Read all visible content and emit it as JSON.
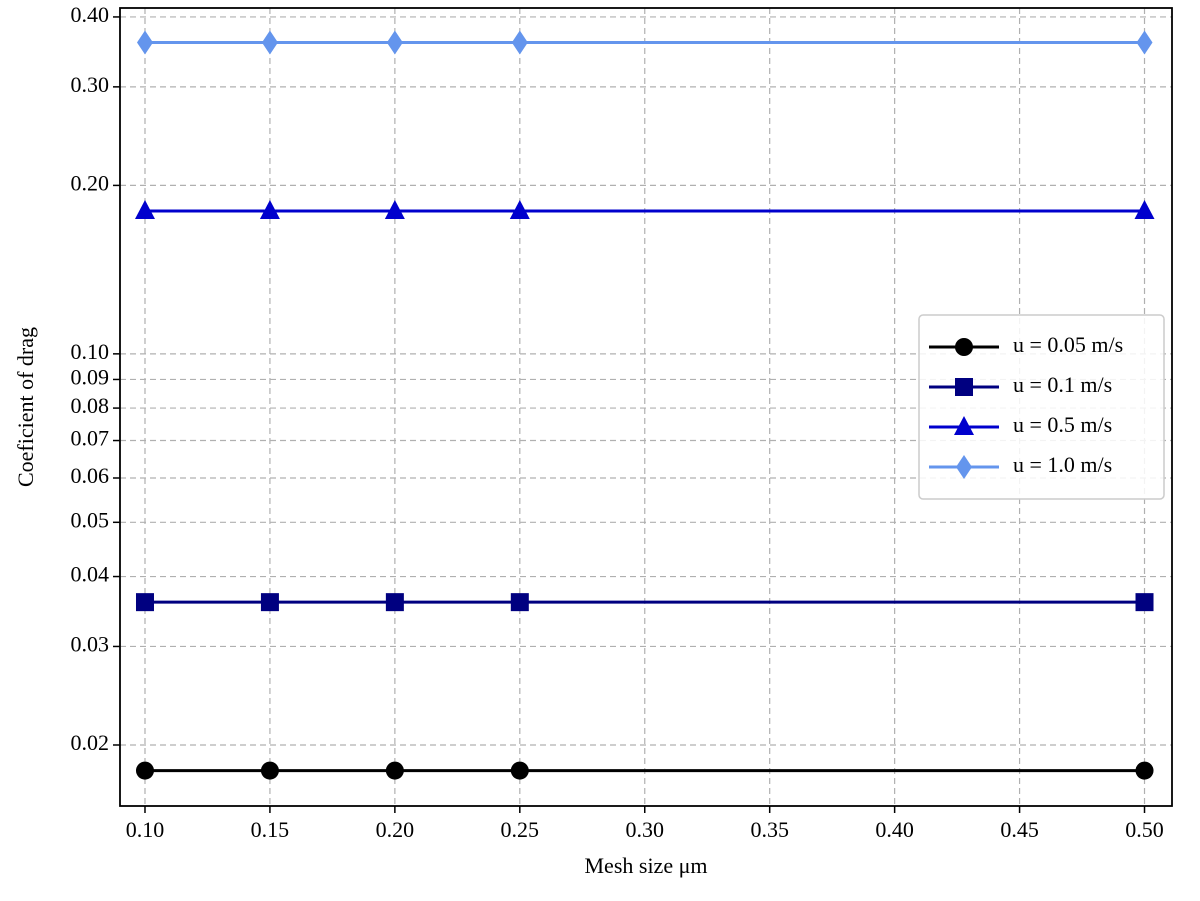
{
  "chart_data": {
    "type": "line",
    "x_label": "Mesh size μm",
    "y_label": "Coeficient of drag",
    "x": [
      0.1,
      0.15,
      0.2,
      0.25,
      0.5
    ],
    "series": [
      {
        "name": "u = 0.05 m/s",
        "color": "#000000",
        "marker": "circle",
        "values": [
          0.018,
          0.018,
          0.018,
          0.018,
          0.018
        ]
      },
      {
        "name": "u = 0.1 m/s",
        "color": "#000080",
        "marker": "square",
        "values": [
          0.036,
          0.036,
          0.036,
          0.036,
          0.036
        ]
      },
      {
        "name": "u = 0.5 m/s",
        "color": "#0000cd",
        "marker": "triangle",
        "values": [
          0.18,
          0.18,
          0.18,
          0.18,
          0.18
        ]
      },
      {
        "name": "u = 1.0 m/s",
        "color": "#6495ed",
        "marker": "diamond",
        "values": [
          0.36,
          0.36,
          0.36,
          0.36,
          0.36
        ]
      }
    ],
    "xlim": [
      0.09,
      0.511
    ],
    "xticks": [
      {
        "value": 0.1,
        "label": "0.10"
      },
      {
        "value": 0.15,
        "label": "0.15"
      },
      {
        "value": 0.2,
        "label": "0.20"
      },
      {
        "value": 0.25,
        "label": "0.25"
      },
      {
        "value": 0.3,
        "label": "0.30"
      },
      {
        "value": 0.35,
        "label": "0.35"
      },
      {
        "value": 0.4,
        "label": "0.40"
      },
      {
        "value": 0.45,
        "label": "0.45"
      },
      {
        "value": 0.5,
        "label": "0.50"
      }
    ],
    "ylim": [
      0.01556,
      0.415
    ],
    "yscale": "log",
    "yticks": [
      0.02,
      0.03,
      0.04,
      0.05,
      0.06,
      0.07,
      0.08,
      0.09,
      {
        "value": 0.1,
        "label": "0.10"
      },
      {
        "value": 0.2,
        "label": "0.20"
      },
      {
        "value": 0.3,
        "label": "0.30"
      },
      {
        "value": 0.4,
        "label": "0.40"
      }
    ],
    "grid": true,
    "legend": "center right"
  }
}
